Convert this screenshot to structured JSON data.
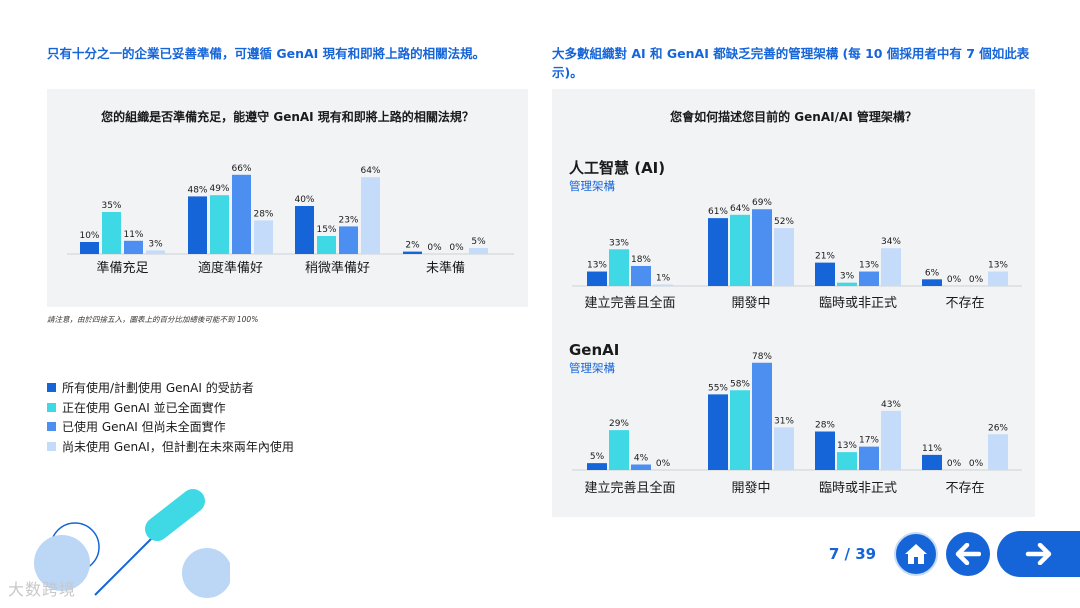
{
  "left": {
    "heading": "只有十分之一的企業已妥善準備，可遵循 GenAI 現有和即將上路的相關法規。",
    "panel_title": "您的組織是否準備充足，能遵守 GenAI 現有和即將上路的相關法規？",
    "note": "請注意，由於四捨五入，圖表上的百分比加總後可能不到 100%"
  },
  "right": {
    "heading": "大多數組織對 AI 和 GenAI 都缺乏完善的管理架構 (每 10 個採用者中有 7 個如此表示)。",
    "panel_title": "您會如何描述您目前的 GenAI/AI 管理架構？",
    "group1_title": "人工智慧 (AI)",
    "group1_sub": "管理架構",
    "group2_title": "GenAI",
    "group2_sub": "管理架構"
  },
  "legend": [
    {
      "label": "所有使用/計劃使用 GenAI 的受訪者",
      "color": "#1565d8"
    },
    {
      "label": "正在使用 GenAI 並已全面實作",
      "color": "#3fd9e6"
    },
    {
      "label": "已使用 GenAI 但尚未全面實作",
      "color": "#4d8ff0"
    },
    {
      "label": "尚未使用 GenAI，但計劃在未來兩年內使用",
      "color": "#c4dcfa"
    }
  ],
  "footer": {
    "page": "7 / 39",
    "watermark": "大数跨境"
  },
  "colors": [
    "#1565d8",
    "#3fd9e6",
    "#4d8ff0",
    "#c4dcfa"
  ],
  "chart_data": [
    {
      "type": "bar",
      "title": "您的組織是否準備充足，能遵守 GenAI 現有和即將上路的相關法規？",
      "categories": [
        "準備充足",
        "適度準備好",
        "稍微準備好",
        "未準備"
      ],
      "series": [
        {
          "name": "所有使用/計劃使用 GenAI 的受訪者",
          "values": [
            10,
            48,
            40,
            2
          ]
        },
        {
          "name": "正在使用 GenAI 並已全面實作",
          "values": [
            35,
            49,
            15,
            0
          ]
        },
        {
          "name": "已使用 GenAI 但尚未全面實作",
          "values": [
            11,
            66,
            23,
            0
          ]
        },
        {
          "name": "尚未使用 GenAI，但計劃在未來兩年內使用",
          "values": [
            3,
            28,
            64,
            5
          ]
        }
      ],
      "unit": "%",
      "ylim": [
        0,
        70
      ]
    },
    {
      "type": "bar",
      "title": "人工智慧 (AI)",
      "categories": [
        "建立完善且全面",
        "開發中",
        "臨時或非正式",
        "不存在"
      ],
      "series": [
        {
          "name": "所有使用/計劃使用 GenAI 的受訪者",
          "values": [
            13,
            61,
            21,
            6
          ]
        },
        {
          "name": "正在使用 GenAI 並已全面實作",
          "values": [
            33,
            64,
            3,
            0
          ]
        },
        {
          "name": "已使用 GenAI 但尚未全面實作",
          "values": [
            18,
            69,
            13,
            0
          ]
        },
        {
          "name": "尚未使用 GenAI，但計劃在未來兩年內使用",
          "values": [
            1,
            52,
            34,
            13
          ]
        }
      ],
      "unit": "%",
      "ylim": [
        0,
        80
      ]
    },
    {
      "type": "bar",
      "title": "GenAI",
      "categories": [
        "建立完善且全面",
        "開發中",
        "臨時或非正式",
        "不存在"
      ],
      "series": [
        {
          "name": "所有使用/計劃使用 GenAI 的受訪者",
          "values": [
            5,
            55,
            28,
            11
          ]
        },
        {
          "name": "正在使用 GenAI 並已全面實作",
          "values": [
            29,
            58,
            13,
            0
          ]
        },
        {
          "name": "已使用 GenAI 但尚未全面實作",
          "values": [
            4,
            78,
            17,
            0
          ]
        },
        {
          "name": "尚未使用 GenAI，但計劃在未來兩年內使用",
          "values": [
            0,
            31,
            43,
            26
          ]
        }
      ],
      "unit": "%",
      "ylim": [
        0,
        80
      ]
    }
  ]
}
